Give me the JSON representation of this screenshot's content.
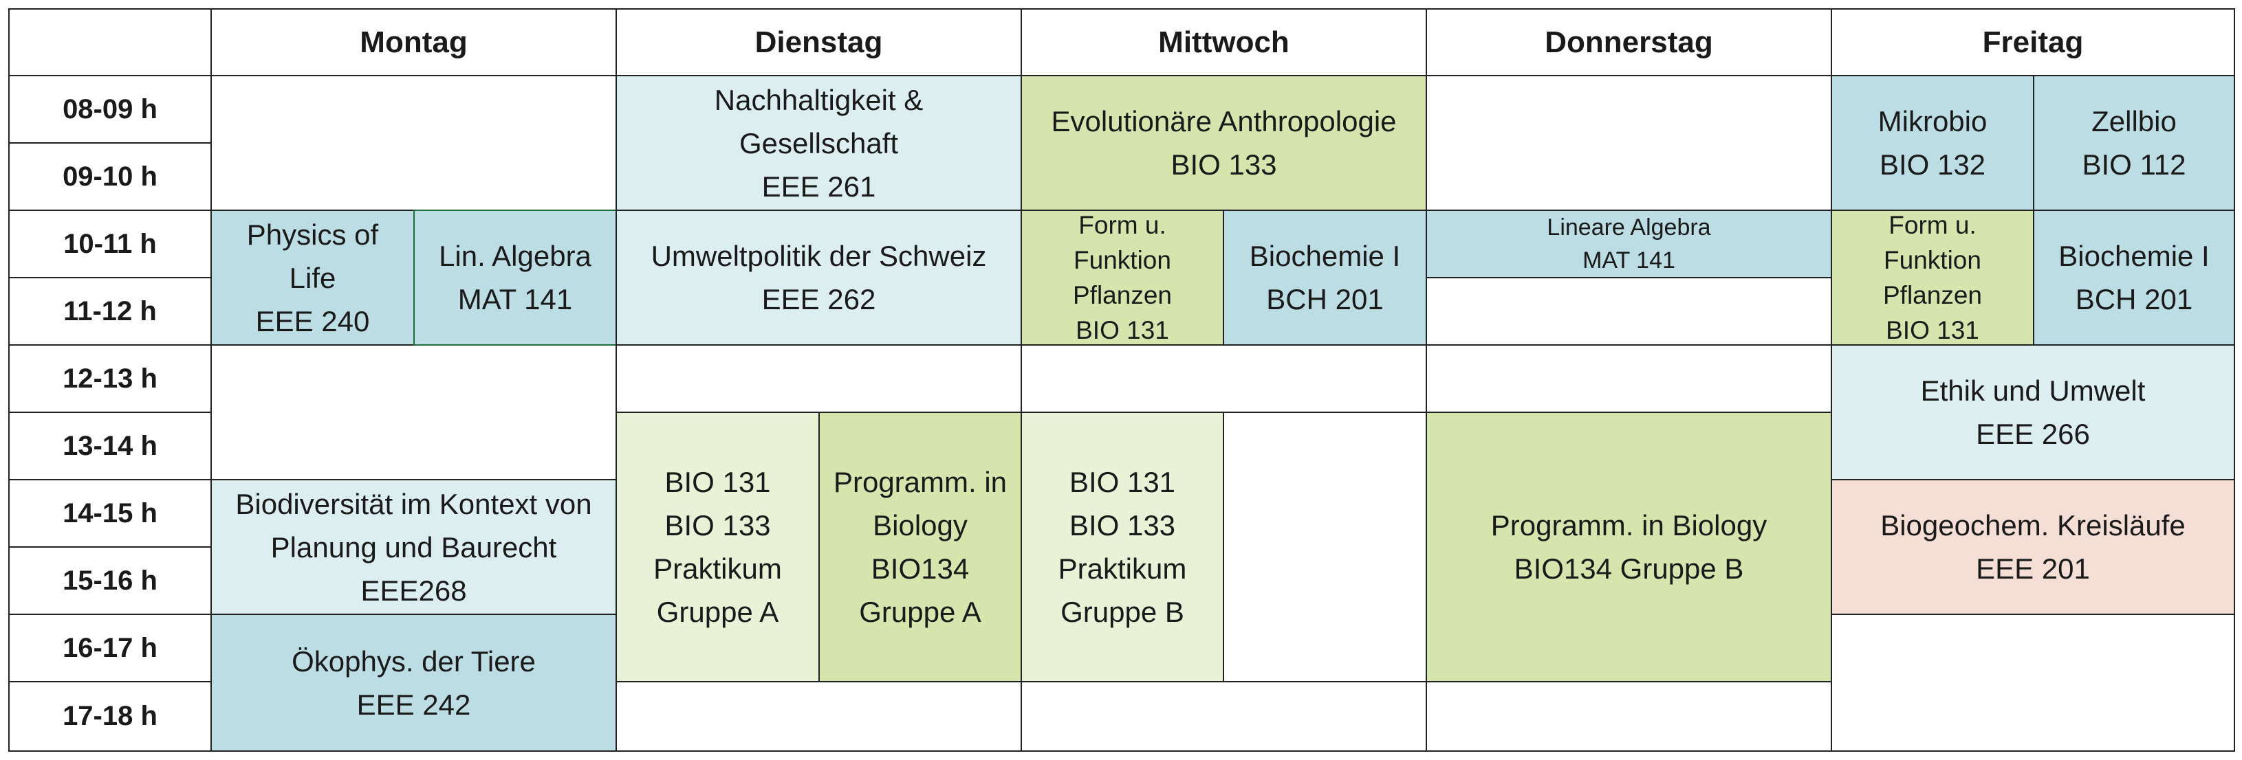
{
  "days": [
    "Montag",
    "Dienstag",
    "Mittwoch",
    "Donnerstag",
    "Freitag"
  ],
  "times": [
    "08-09 h",
    "09-10 h",
    "10-11 h",
    "11-12 h",
    "12-13 h",
    "13-14 h",
    "14-15 h",
    "15-16 h",
    "16-17 h",
    "17-18 h"
  ],
  "colors": {
    "teal": "#bcdde4",
    "light_blue": "#ddeef1",
    "green": "#d5e5ad",
    "pale_green": "#e9f2d7",
    "salmon": "#f4ded6"
  },
  "courses": [
    {
      "day": "Montag",
      "start": "10-11 h",
      "end": "11-12 h",
      "lines": [
        "Physics of",
        "Life",
        "EEE 240"
      ],
      "color": "teal"
    },
    {
      "day": "Montag",
      "start": "10-11 h",
      "end": "11-12 h",
      "lines": [
        "Lin. Algebra",
        "MAT 141"
      ],
      "color": "teal",
      "selected": true
    },
    {
      "day": "Montag",
      "start": "14-15 h",
      "end": "15-16 h",
      "lines": [
        "Biodiversität im Kontext von",
        "Planung und Baurecht",
        "EEE268"
      ],
      "color": "light_blue"
    },
    {
      "day": "Montag",
      "start": "16-17 h",
      "end": "17-18 h",
      "lines": [
        "Ökophys. der Tiere",
        "EEE 242"
      ],
      "color": "teal"
    },
    {
      "day": "Dienstag",
      "start": "08-09 h",
      "end": "09-10 h",
      "lines": [
        "Nachhaltigkeit &",
        "Gesellschaft",
        "EEE 261"
      ],
      "color": "light_blue"
    },
    {
      "day": "Dienstag",
      "start": "10-11 h",
      "end": "11-12 h",
      "lines": [
        "Umweltpolitik der Schweiz",
        "EEE 262"
      ],
      "color": "light_blue"
    },
    {
      "day": "Dienstag",
      "start": "13-14 h",
      "end": "16-17 h",
      "lines": [
        "BIO 131",
        "BIO 133",
        "Praktikum",
        "Gruppe A"
      ],
      "color": "pale_green"
    },
    {
      "day": "Dienstag",
      "start": "13-14 h",
      "end": "16-17 h",
      "lines": [
        "Programm. in",
        "Biology",
        "BIO134",
        "Gruppe A"
      ],
      "color": "green"
    },
    {
      "day": "Mittwoch",
      "start": "08-09 h",
      "end": "09-10 h",
      "lines": [
        "Evolutionäre Anthropologie",
        "BIO 133"
      ],
      "color": "green"
    },
    {
      "day": "Mittwoch",
      "start": "10-11 h",
      "end": "11-12 h",
      "lines": [
        "Form u.",
        "Funktion",
        "Pflanzen",
        "BIO 131"
      ],
      "color": "green"
    },
    {
      "day": "Mittwoch",
      "start": "10-11 h",
      "end": "11-12 h",
      "lines": [
        "Biochemie I",
        "BCH 201"
      ],
      "color": "teal"
    },
    {
      "day": "Mittwoch",
      "start": "13-14 h",
      "end": "16-17 h",
      "lines": [
        "BIO 131",
        "BIO 133",
        "Praktikum",
        "Gruppe B"
      ],
      "color": "pale_green"
    },
    {
      "day": "Donnerstag",
      "start": "10-11 h",
      "end": "10-11 h",
      "lines": [
        "Lineare Algebra",
        "MAT 141"
      ],
      "color": "teal"
    },
    {
      "day": "Donnerstag",
      "start": "13-14 h",
      "end": "16-17 h",
      "lines": [
        "Programm. in Biology",
        "BIO134 Gruppe B"
      ],
      "color": "green"
    },
    {
      "day": "Freitag",
      "start": "08-09 h",
      "end": "09-10 h",
      "lines": [
        "Mikrobio",
        "BIO 132"
      ],
      "color": "teal"
    },
    {
      "day": "Freitag",
      "start": "08-09 h",
      "end": "09-10 h",
      "lines": [
        "Zellbio",
        "BIO 112"
      ],
      "color": "teal"
    },
    {
      "day": "Freitag",
      "start": "10-11 h",
      "end": "11-12 h",
      "lines": [
        "Form u.",
        "Funktion",
        "Pflanzen",
        "BIO 131"
      ],
      "color": "green"
    },
    {
      "day": "Freitag",
      "start": "10-11 h",
      "end": "11-12 h",
      "lines": [
        "Biochemie I",
        "BCH 201"
      ],
      "color": "teal"
    },
    {
      "day": "Freitag",
      "start": "12-13 h",
      "end": "13-14 h",
      "lines": [
        "Ethik und Umwelt",
        "EEE 266"
      ],
      "color": "light_blue"
    },
    {
      "day": "Freitag",
      "start": "14-15 h",
      "end": "15-16 h",
      "lines": [
        "Biogeochem. Kreisläufe",
        "EEE 201"
      ],
      "color": "salmon"
    }
  ]
}
